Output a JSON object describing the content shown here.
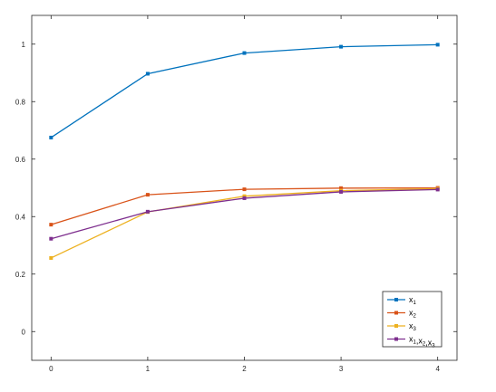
{
  "chart_data": {
    "type": "line",
    "title": "",
    "xlabel": "",
    "ylabel": "",
    "x": [
      0,
      1,
      2,
      3,
      4
    ],
    "xlim": [
      -0.2,
      4.2
    ],
    "ylim": [
      -0.1,
      1.1
    ],
    "xticks": [
      0,
      1,
      2,
      3,
      4
    ],
    "xtick_labels": [
      "0",
      "1",
      "2",
      "3",
      "4"
    ],
    "yticks": [
      0,
      0.2,
      0.4,
      0.6,
      0.8,
      1
    ],
    "ytick_labels": [
      "0",
      "0.2",
      "0.4",
      "0.6",
      "0.8",
      "1"
    ],
    "grid": false,
    "legend_position": "bottom-right",
    "series": [
      {
        "name": "x1",
        "label_main": "x",
        "label_sub": "1",
        "color": "#0072BD",
        "values": [
          0.675,
          0.897,
          0.969,
          0.991,
          0.998
        ]
      },
      {
        "name": "x2",
        "label_main": "x",
        "label_sub": "2",
        "color": "#D95319",
        "values": [
          0.372,
          0.476,
          0.495,
          0.499,
          0.5
        ]
      },
      {
        "name": "x3",
        "label_main": "x",
        "label_sub": "3",
        "color": "#EDB120",
        "values": [
          0.256,
          0.416,
          0.471,
          0.49,
          0.497
        ]
      },
      {
        "name": "x1,x2,x3",
        "label_parts": [
          [
            "x",
            "1"
          ],
          [
            ",x",
            "2"
          ],
          [
            ",x",
            "3"
          ]
        ],
        "color": "#7E2F8E",
        "values": [
          0.323,
          0.417,
          0.464,
          0.486,
          0.494
        ]
      }
    ]
  }
}
